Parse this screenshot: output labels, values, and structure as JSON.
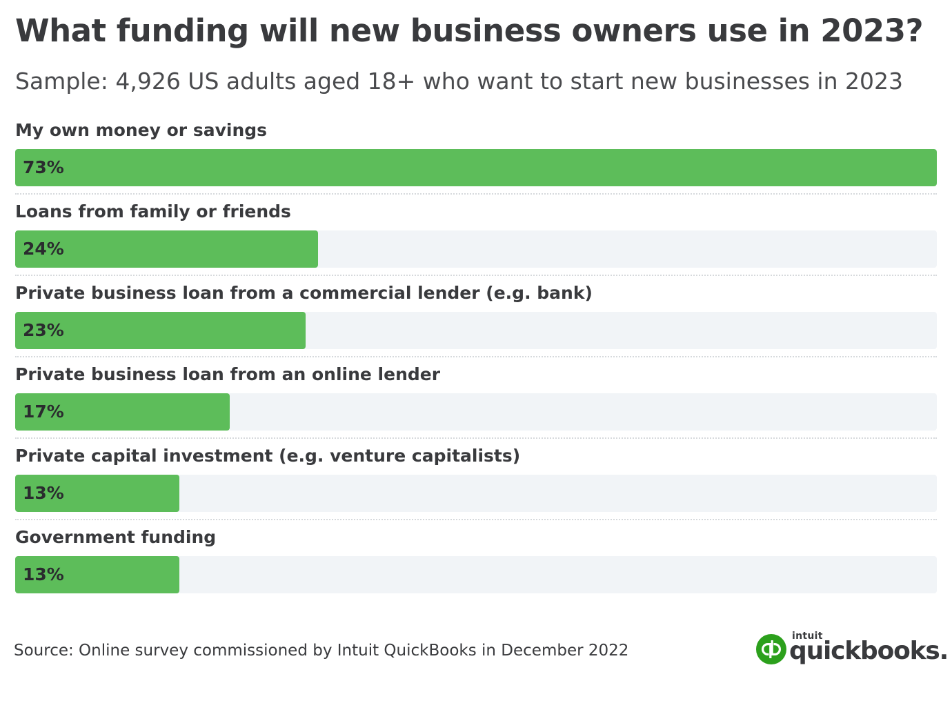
{
  "header": {
    "title": "What funding will new business owners use in 2023?",
    "subtitle": "Sample: 4,926 US adults aged 18+ who want to start new businesses in 2023"
  },
  "colors": {
    "bar": "#5dbd5a",
    "track": "#f1f4f7",
    "text": "#393a3d",
    "brand": "#2ca01c"
  },
  "chart_data": {
    "type": "bar",
    "orientation": "horizontal",
    "title": "What funding will new business owners use in 2023?",
    "subtitle": "Sample: 4,926 US adults aged 18+ who want to start new businesses in 2023",
    "categories": [
      "My own money or savings",
      "Loans from family or friends",
      "Private business loan from a commercial lender (e.g. bank)",
      "Private business loan from an online lender",
      "Private capital investment (e.g. venture capitalists)",
      "Government funding"
    ],
    "values": [
      73,
      24,
      23,
      17,
      13,
      13
    ],
    "value_labels": [
      "73%",
      "24%",
      "23%",
      "17%",
      "13%",
      "13%"
    ],
    "unit": "%",
    "xlim": [
      0,
      73
    ],
    "grid": false,
    "legend": "none"
  },
  "footer": {
    "source": "Source: Online survey commissioned by Intuit QuickBooks in December 2022"
  },
  "logo": {
    "icon": "quickbooks-logo-icon",
    "intuit_text": "intuit",
    "word_text": "quickbooks."
  }
}
